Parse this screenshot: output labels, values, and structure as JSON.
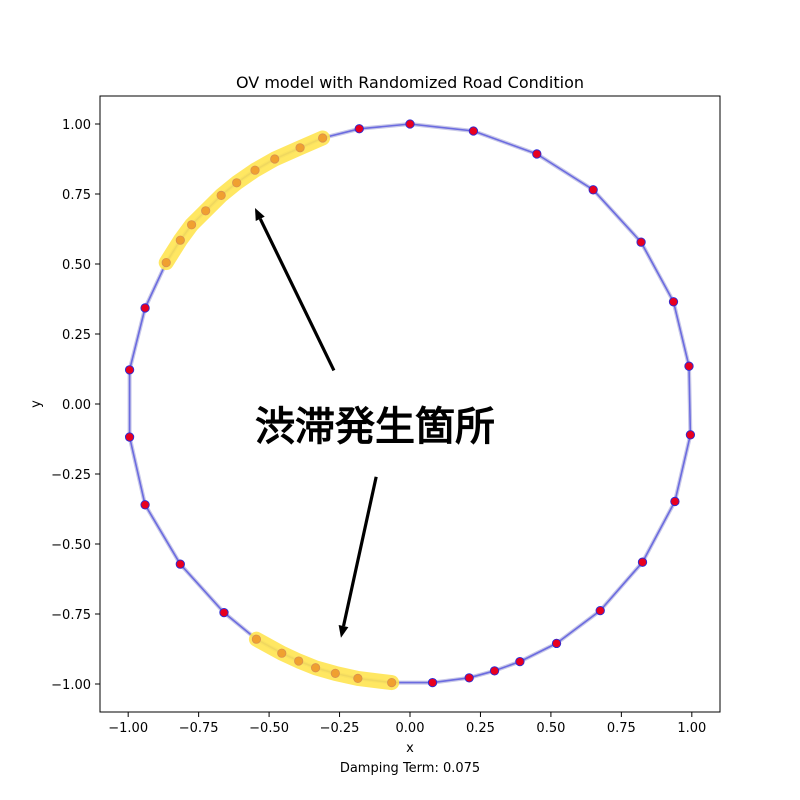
{
  "chart_data": {
    "type": "scatter",
    "title": "OV model with Randomized Road Condition",
    "xlabel": "x",
    "ylabel": "y",
    "xlim": [
      -1.1,
      1.1
    ],
    "ylim": [
      -1.1,
      1.1
    ],
    "xticks": [
      -1.0,
      -0.75,
      -0.5,
      -0.25,
      0.0,
      0.25,
      0.5,
      0.75,
      1.0
    ],
    "yticks": [
      -1.0,
      -0.75,
      -0.5,
      -0.25,
      0.0,
      0.25,
      0.5,
      0.75,
      1.0
    ],
    "xtick_labels": [
      "−1.00",
      "−0.75",
      "−0.50",
      "−0.25",
      "0.00",
      "0.25",
      "0.50",
      "0.75",
      "1.00"
    ],
    "ytick_labels": [
      "−1.00",
      "−0.75",
      "−0.50",
      "−0.25",
      "0.00",
      "0.25",
      "0.50",
      "0.75",
      "1.00"
    ],
    "grid": false,
    "annotation": "渋滞発生箇所",
    "caption": "Damping Term: 0.075",
    "colors": {
      "vehicle": "#e8001f",
      "vehicle_edge": "#2b2bd6",
      "path": "#6b6be0",
      "highlight": "#ffe451",
      "highlight_point": "#f0a030",
      "arrow": "#000000"
    },
    "points": [
      {
        "x": 0.0,
        "y": 1.0
      },
      {
        "x": 0.225,
        "y": 0.975
      },
      {
        "x": 0.45,
        "y": 0.893
      },
      {
        "x": 0.65,
        "y": 0.765
      },
      {
        "x": 0.82,
        "y": 0.578
      },
      {
        "x": 0.935,
        "y": 0.365
      },
      {
        "x": 0.99,
        "y": 0.135
      },
      {
        "x": 0.995,
        "y": -0.11
      },
      {
        "x": 0.94,
        "y": -0.348
      },
      {
        "x": 0.825,
        "y": -0.565
      },
      {
        "x": 0.675,
        "y": -0.738
      },
      {
        "x": 0.52,
        "y": -0.855
      },
      {
        "x": 0.39,
        "y": -0.92
      },
      {
        "x": 0.3,
        "y": -0.953
      },
      {
        "x": 0.21,
        "y": -0.978
      },
      {
        "x": 0.08,
        "y": -0.995
      },
      {
        "x": -0.66,
        "y": -0.745
      },
      {
        "x": -0.815,
        "y": -0.572
      },
      {
        "x": -0.94,
        "y": -0.36
      },
      {
        "x": -0.995,
        "y": -0.118
      },
      {
        "x": -0.995,
        "y": 0.122
      },
      {
        "x": -0.94,
        "y": 0.343
      },
      {
        "x": -0.18,
        "y": 0.983
      }
    ],
    "congested_upper": [
      {
        "x": -0.31,
        "y": 0.95
      },
      {
        "x": -0.39,
        "y": 0.915
      },
      {
        "x": -0.48,
        "y": 0.875
      },
      {
        "x": -0.55,
        "y": 0.835
      },
      {
        "x": -0.615,
        "y": 0.79
      },
      {
        "x": -0.67,
        "y": 0.745
      },
      {
        "x": -0.725,
        "y": 0.69
      },
      {
        "x": -0.775,
        "y": 0.64
      },
      {
        "x": -0.815,
        "y": 0.585
      },
      {
        "x": -0.865,
        "y": 0.505
      }
    ],
    "congested_lower": [
      {
        "x": -0.545,
        "y": -0.84
      },
      {
        "x": -0.455,
        "y": -0.89
      },
      {
        "x": -0.395,
        "y": -0.918
      },
      {
        "x": -0.335,
        "y": -0.942
      },
      {
        "x": -0.265,
        "y": -0.962
      },
      {
        "x": -0.185,
        "y": -0.98
      },
      {
        "x": -0.065,
        "y": -0.995
      }
    ],
    "arrows": [
      {
        "from": {
          "x": -0.27,
          "y": 0.12
        },
        "to": {
          "x": -0.55,
          "y": 0.7
        }
      },
      {
        "from": {
          "x": -0.12,
          "y": -0.26
        },
        "to": {
          "x": -0.245,
          "y": -0.835
        }
      }
    ]
  }
}
